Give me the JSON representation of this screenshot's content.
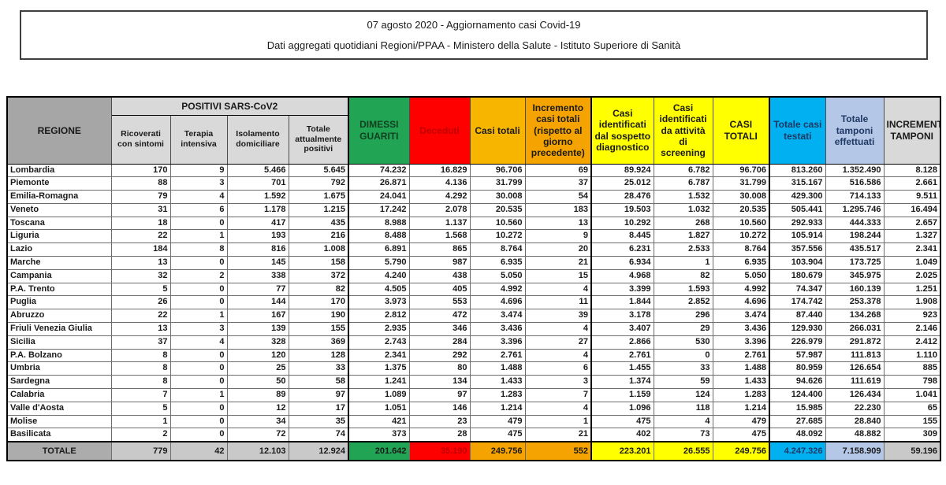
{
  "title": {
    "line1": "07 agosto 2020 - Aggiornamento casi Covid-19",
    "line2": "Dati aggregati quotidiani Regioni/PPAA - Ministero della Salute - Istituto Superiore di Sanità"
  },
  "colors": {
    "hdrgray": "#A6A6A6",
    "ltgray": "#D9D9D9",
    "totgray": "#ACACAC",
    "totnum": "#C9C9C9",
    "green": "#21A453",
    "green_text": "#123F1F",
    "red": "#FE0000",
    "red_text": "#C00000",
    "orange1": "#F7B500",
    "orange2": "#F5A300",
    "yellow": "#FFFF00",
    "cyan": "#00B0F0",
    "peri": "#B4C7E7",
    "navy_text": "#1F3864"
  },
  "headers": {
    "regione": "REGIONE",
    "positivi_group": "POSITIVI SARS-CoV2",
    "sub": [
      "Ricoverati con sintomi",
      "Terapia intensiva",
      "Isolamento domiciliare",
      "Totale attualmente positivi"
    ],
    "dimessi": "DIMESSI GUARITI",
    "deceduti": "Deceduti",
    "casi_totali": "Casi totali",
    "incremento_casi": "Incremento casi totali (rispetto al giorno precedente)",
    "sospetto": "Casi identificati dal sospetto diagnostico",
    "screening": "Casi identificati da attività di screening",
    "casi_totali_caps": "CASI TOTALI",
    "testati": "Totale casi testati",
    "tamponi": "Totale tamponi effettuati",
    "incremento_tamponi": "INCREMENTO TAMPONI"
  },
  "table": {
    "rows": [
      {
        "region": "Lombardia",
        "values": [
          "170",
          "9",
          "5.466",
          "5.645",
          "74.232",
          "16.829",
          "96.706",
          "69",
          "89.924",
          "6.782",
          "96.706",
          "813.260",
          "1.352.490",
          "8.128"
        ]
      },
      {
        "region": "Piemonte",
        "values": [
          "88",
          "3",
          "701",
          "792",
          "26.871",
          "4.136",
          "31.799",
          "37",
          "25.012",
          "6.787",
          "31.799",
          "315.167",
          "516.586",
          "2.661"
        ]
      },
      {
        "region": "Emilia-Romagna",
        "values": [
          "79",
          "4",
          "1.592",
          "1.675",
          "24.041",
          "4.292",
          "30.008",
          "54",
          "28.476",
          "1.532",
          "30.008",
          "429.300",
          "714.133",
          "9.511"
        ]
      },
      {
        "region": "Veneto",
        "values": [
          "31",
          "6",
          "1.178",
          "1.215",
          "17.242",
          "2.078",
          "20.535",
          "183",
          "19.503",
          "1.032",
          "20.535",
          "505.441",
          "1.295.746",
          "16.494"
        ]
      },
      {
        "region": "Toscana",
        "values": [
          "18",
          "0",
          "417",
          "435",
          "8.988",
          "1.137",
          "10.560",
          "13",
          "10.292",
          "268",
          "10.560",
          "292.933",
          "444.333",
          "2.657"
        ]
      },
      {
        "region": "Liguria",
        "values": [
          "22",
          "1",
          "193",
          "216",
          "8.488",
          "1.568",
          "10.272",
          "9",
          "8.445",
          "1.827",
          "10.272",
          "105.914",
          "198.244",
          "1.327"
        ]
      },
      {
        "region": "Lazio",
        "values": [
          "184",
          "8",
          "816",
          "1.008",
          "6.891",
          "865",
          "8.764",
          "20",
          "6.231",
          "2.533",
          "8.764",
          "357.556",
          "435.517",
          "2.341"
        ]
      },
      {
        "region": "Marche",
        "values": [
          "13",
          "0",
          "145",
          "158",
          "5.790",
          "987",
          "6.935",
          "21",
          "6.934",
          "1",
          "6.935",
          "103.904",
          "173.725",
          "1.049"
        ]
      },
      {
        "region": "Campania",
        "values": [
          "32",
          "2",
          "338",
          "372",
          "4.240",
          "438",
          "5.050",
          "15",
          "4.968",
          "82",
          "5.050",
          "180.679",
          "345.975",
          "2.025"
        ]
      },
      {
        "region": "P.A. Trento",
        "values": [
          "5",
          "0",
          "77",
          "82",
          "4.505",
          "405",
          "4.992",
          "4",
          "3.399",
          "1.593",
          "4.992",
          "74.347",
          "160.139",
          "1.251"
        ]
      },
      {
        "region": "Puglia",
        "values": [
          "26",
          "0",
          "144",
          "170",
          "3.973",
          "553",
          "4.696",
          "11",
          "1.844",
          "2.852",
          "4.696",
          "174.742",
          "253.378",
          "1.908"
        ]
      },
      {
        "region": "Abruzzo",
        "values": [
          "22",
          "1",
          "167",
          "190",
          "2.812",
          "472",
          "3.474",
          "39",
          "3.178",
          "296",
          "3.474",
          "87.440",
          "134.268",
          "923"
        ]
      },
      {
        "region": "Friuli Venezia Giulia",
        "values": [
          "13",
          "3",
          "139",
          "155",
          "2.935",
          "346",
          "3.436",
          "4",
          "3.407",
          "29",
          "3.436",
          "129.930",
          "266.031",
          "2.146"
        ]
      },
      {
        "region": "Sicilia",
        "values": [
          "37",
          "4",
          "328",
          "369",
          "2.743",
          "284",
          "3.396",
          "27",
          "2.866",
          "530",
          "3.396",
          "226.979",
          "291.872",
          "2.412"
        ]
      },
      {
        "region": "P.A. Bolzano",
        "values": [
          "8",
          "0",
          "120",
          "128",
          "2.341",
          "292",
          "2.761",
          "4",
          "2.761",
          "0",
          "2.761",
          "57.987",
          "111.813",
          "1.110"
        ]
      },
      {
        "region": "Umbria",
        "values": [
          "8",
          "0",
          "25",
          "33",
          "1.375",
          "80",
          "1.488",
          "6",
          "1.455",
          "33",
          "1.488",
          "80.959",
          "126.654",
          "885"
        ]
      },
      {
        "region": "Sardegna",
        "values": [
          "8",
          "0",
          "50",
          "58",
          "1.241",
          "134",
          "1.433",
          "3",
          "1.374",
          "59",
          "1.433",
          "94.626",
          "111.619",
          "798"
        ]
      },
      {
        "region": "Calabria",
        "values": [
          "7",
          "1",
          "89",
          "97",
          "1.089",
          "97",
          "1.283",
          "7",
          "1.159",
          "124",
          "1.283",
          "124.400",
          "126.434",
          "1.041"
        ]
      },
      {
        "region": "Valle d'Aosta",
        "values": [
          "5",
          "0",
          "12",
          "17",
          "1.051",
          "146",
          "1.214",
          "4",
          "1.096",
          "118",
          "1.214",
          "15.985",
          "22.230",
          "65"
        ]
      },
      {
        "region": "Molise",
        "values": [
          "1",
          "0",
          "34",
          "35",
          "421",
          "23",
          "479",
          "1",
          "475",
          "4",
          "479",
          "27.685",
          "28.840",
          "155"
        ]
      },
      {
        "region": "Basilicata",
        "values": [
          "2",
          "0",
          "72",
          "74",
          "373",
          "28",
          "475",
          "21",
          "402",
          "73",
          "475",
          "48.092",
          "48.882",
          "309"
        ]
      }
    ],
    "totale": {
      "label": "TOTALE",
      "values": [
        "779",
        "42",
        "12.103",
        "12.924",
        "201.642",
        "35.190",
        "249.756",
        "552",
        "223.201",
        "26.555",
        "249.756",
        "4.247.326",
        "7.158.909",
        "59.196"
      ]
    }
  }
}
